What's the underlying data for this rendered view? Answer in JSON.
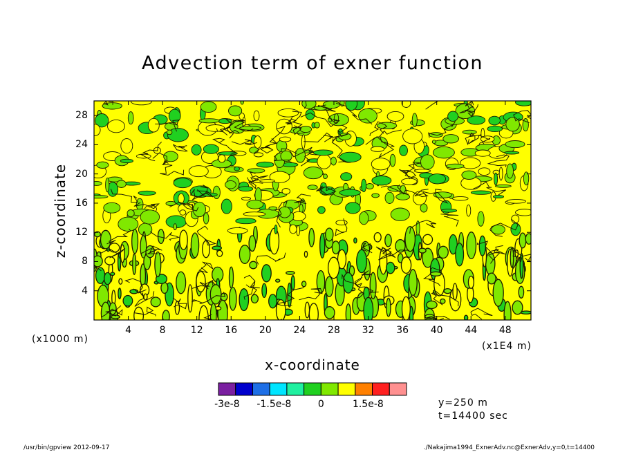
{
  "chart_data": {
    "type": "heatmap",
    "title": "Advection term of exner function",
    "xlabel": "x-coordinate",
    "ylabel": "z-coordinate",
    "x_unit_left": "(x1000 m)",
    "x_unit_right": "(x1E4 m)",
    "x_ticks": [
      "4",
      "8",
      "12",
      "16",
      "20",
      "24",
      "28",
      "32",
      "36",
      "40",
      "44",
      "48"
    ],
    "y_ticks": [
      "4",
      "8",
      "12",
      "16",
      "20",
      "24",
      "28"
    ],
    "xlim": [
      0,
      51
    ],
    "ylim": [
      0,
      30
    ],
    "colorbar": {
      "levels": [
        -3e-08,
        -2.5e-08,
        -2e-08,
        -1.5e-08,
        -1e-08,
        -5e-09,
        0,
        5e-09,
        1e-08,
        1.5e-08,
        2e-08,
        2.5e-08,
        3e-08
      ],
      "colors": [
        "#7a1fa0",
        "#0000cd",
        "#1e6fe6",
        "#00e5ff",
        "#20f0a0",
        "#20d020",
        "#80e800",
        "#ffff00",
        "#ff8000",
        "#ff2020",
        "#ff9090"
      ],
      "labels": [
        "-3e-8",
        "-1.5e-8",
        "0",
        "1.5e-8"
      ]
    },
    "dominant_colors": [
      "#ffff00",
      "#80e800",
      "#20d020"
    ]
  },
  "info": {
    "y_text": "y=250 m",
    "t_text": "t=14400 sec"
  },
  "footer": {
    "left": "/usr/bin/gpview   2012-09-17",
    "right": "./Nakajima1994_ExnerAdv.nc@ExnerAdv,y=0,t=14400"
  }
}
